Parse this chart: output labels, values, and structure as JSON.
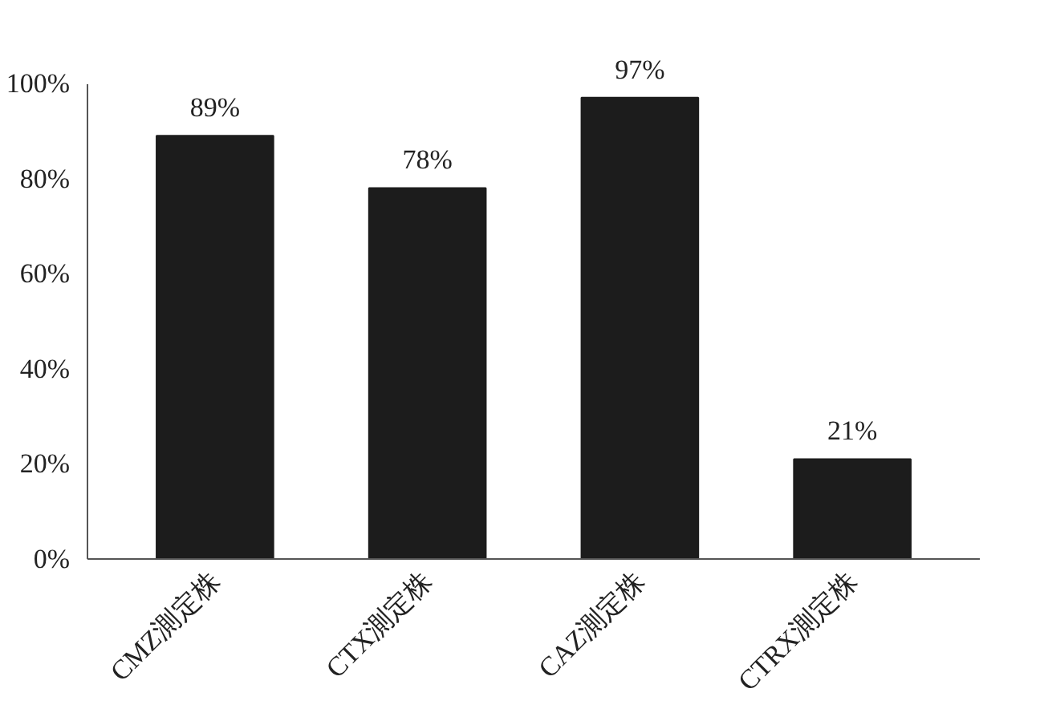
{
  "chart_data": {
    "type": "bar",
    "categories": [
      "CMZ測定株",
      "CTX測定株",
      "CAZ測定株",
      "CTRX測定株"
    ],
    "values": [
      89,
      78,
      97,
      21
    ],
    "value_labels": [
      "89%",
      "78%",
      "97%",
      "21%"
    ],
    "color": "#1c1c1c",
    "ylim": [
      0,
      100
    ],
    "yticks": [
      {
        "value": 0,
        "label": "0%"
      },
      {
        "value": 20,
        "label": "20%"
      },
      {
        "value": 40,
        "label": "40%"
      },
      {
        "value": 60,
        "label": "60%"
      },
      {
        "value": 80,
        "label": "80%"
      },
      {
        "value": 100,
        "label": "100%"
      }
    ],
    "grid": false
  }
}
